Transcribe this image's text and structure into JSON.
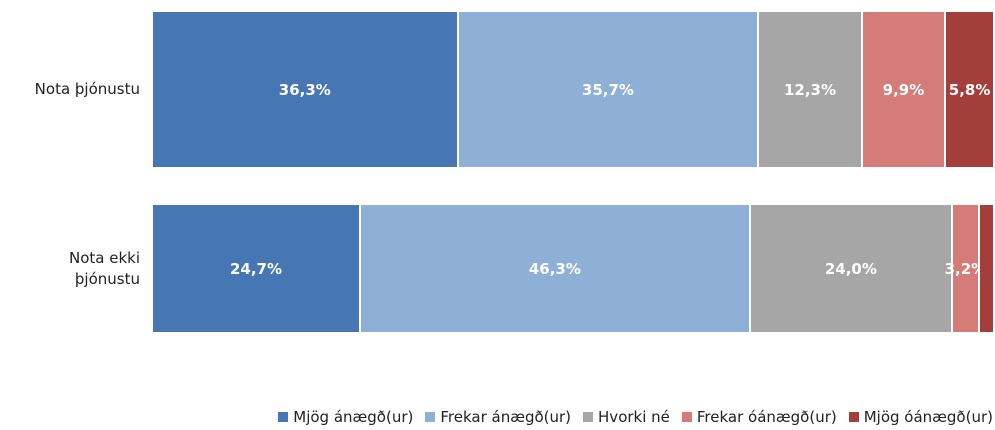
{
  "chart_data": {
    "type": "stacked-bar-horizontal",
    "categories": [
      "Nota þjónustu",
      "Nota ekki þjónustu"
    ],
    "xlim": [
      0,
      100
    ],
    "series": [
      {
        "name": "Mjög ánægð(ur)",
        "color": "#4677b4",
        "values": [
          36.3,
          24.7
        ],
        "value_labels": [
          "36,3%",
          "24,7%"
        ]
      },
      {
        "name": "Frekar ánægð(ur)",
        "color": "#8eb0d6",
        "values": [
          35.7,
          46.3
        ],
        "value_labels": [
          "35,7%",
          "46,3%"
        ]
      },
      {
        "name": "Hvorki né",
        "color": "#a6a6a6",
        "values": [
          12.3,
          24.0
        ],
        "value_labels": [
          "12,3%",
          "24,0%"
        ]
      },
      {
        "name": "Frekar óánægð(ur)",
        "color": "#d57c78",
        "values": [
          9.9,
          3.2
        ],
        "value_labels": [
          "9,9%",
          "3,2%"
        ]
      },
      {
        "name": "Mjög óánægð(ur)",
        "color": "#a43e3b",
        "values": [
          5.8,
          1.8
        ],
        "value_labels": [
          "5,8%",
          null
        ]
      }
    ],
    "legend": "bottom"
  }
}
